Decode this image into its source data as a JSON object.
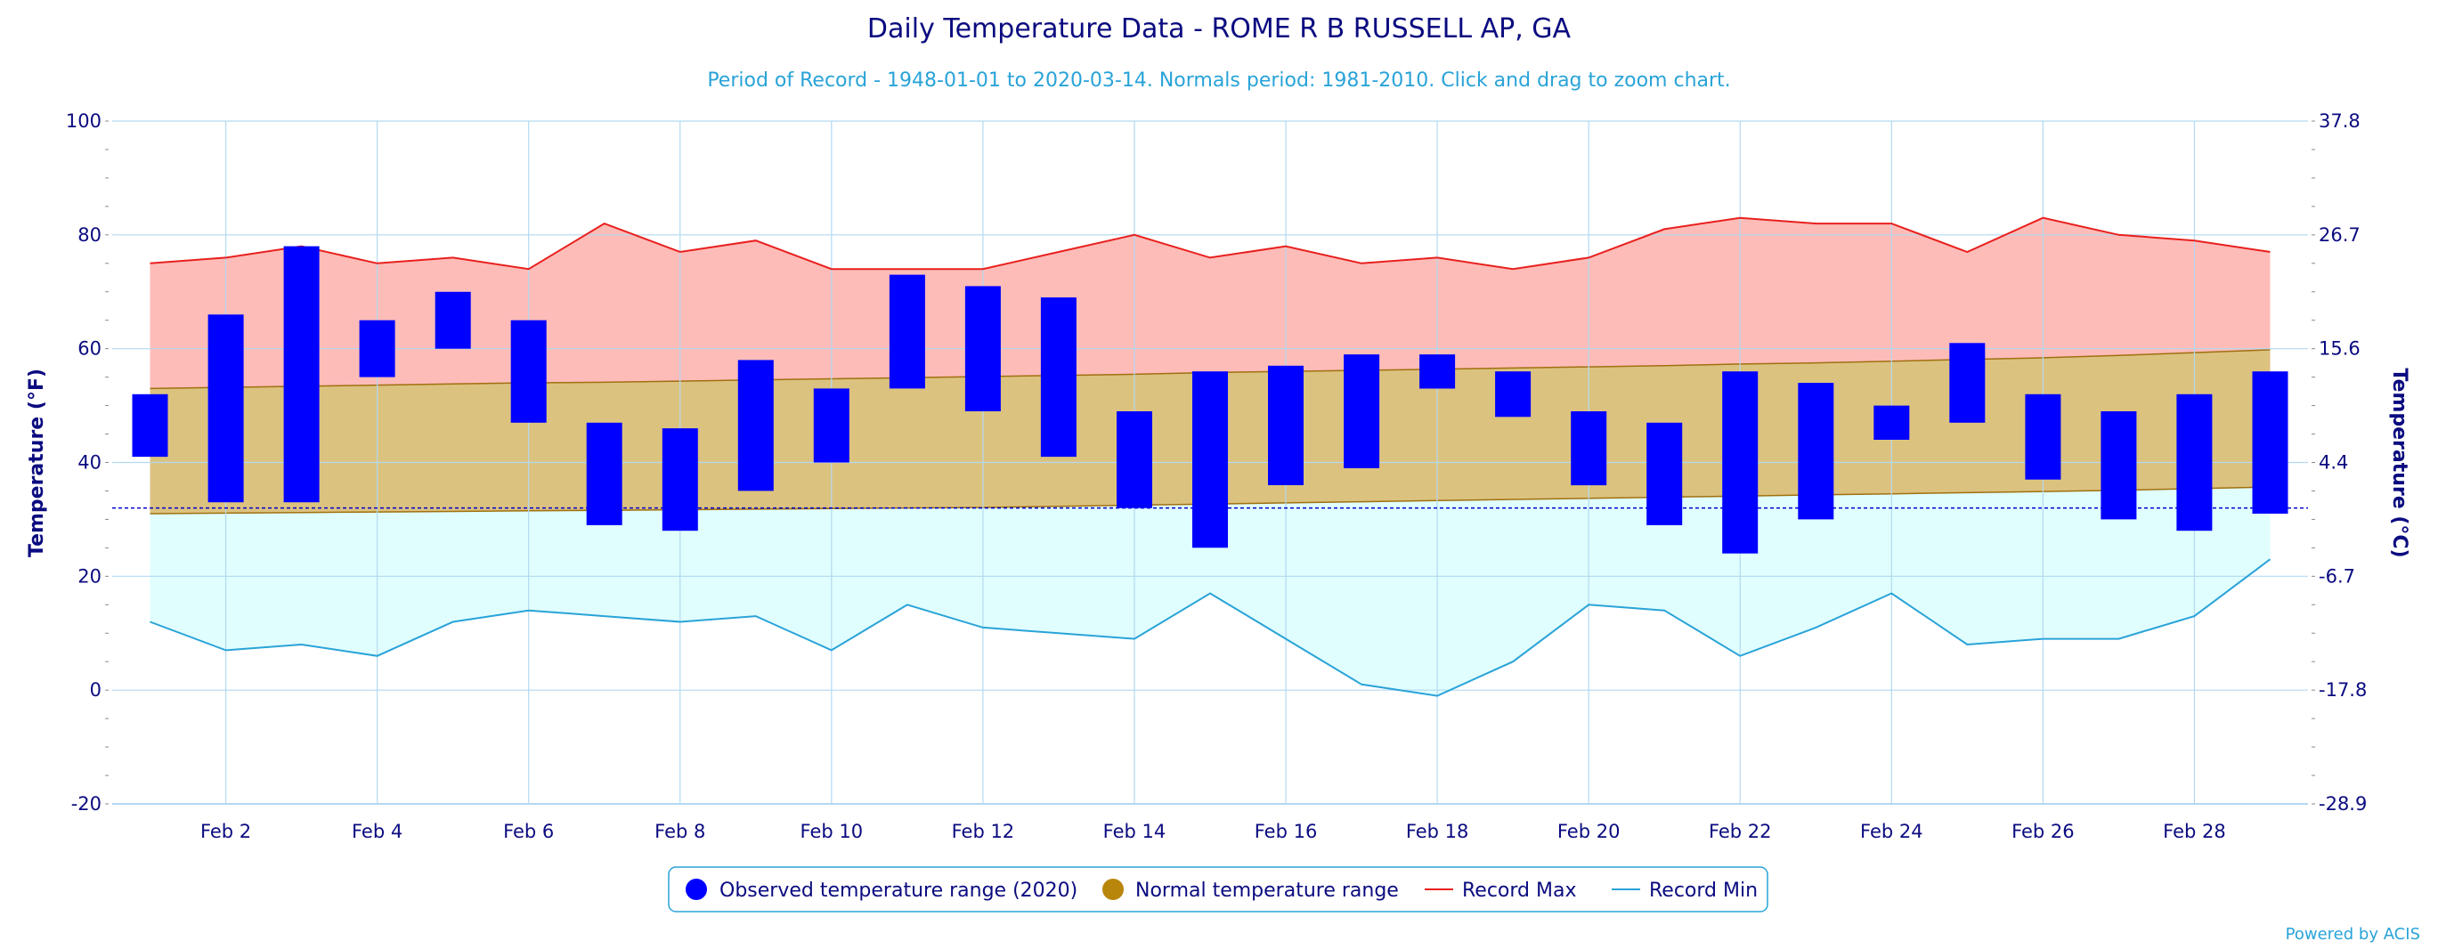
{
  "chart_data": {
    "type": "bar",
    "title": "Daily Temperature Data - ROME R B RUSSELL AP, GA",
    "subtitle": "Period of Record - 1948-01-01 to 2020-03-14. Normals period: 1981-2010. Click and drag to zoom chart.",
    "ylabel_left": "Temperature (°F)",
    "ylabel_right": "Temperature (°C)",
    "ylim": [
      -20,
      100
    ],
    "yticks_left": [
      "-20",
      "0",
      "20",
      "40",
      "60",
      "80",
      "100"
    ],
    "yticks_right": [
      "-28.9",
      "-17.8",
      "-6.7",
      "4.4",
      "15.6",
      "26.7",
      "37.8"
    ],
    "xlim": [
      0.5,
      29.5
    ],
    "xtick_days": [
      2,
      4,
      6,
      8,
      10,
      12,
      14,
      16,
      18,
      20,
      22,
      24,
      26,
      28
    ],
    "xtick_labels": [
      "Feb 2",
      "Feb 4",
      "Feb 6",
      "Feb 8",
      "Feb 10",
      "Feb 12",
      "Feb 14",
      "Feb 16",
      "Feb 18",
      "Feb 20",
      "Feb 22",
      "Feb 24",
      "Feb 26",
      "Feb 28"
    ],
    "freezing_line": 32,
    "days": [
      1,
      2,
      3,
      4,
      5,
      6,
      7,
      8,
      9,
      10,
      11,
      12,
      13,
      14,
      15,
      16,
      17,
      18,
      19,
      20,
      21,
      22,
      23,
      24,
      25,
      26,
      27,
      28,
      29
    ],
    "series": [
      {
        "name": "Observed temperature range (2020)",
        "color": "#0000ff",
        "high": [
          52,
          66,
          78,
          65,
          70,
          65,
          47,
          46,
          58,
          53,
          73,
          71,
          69,
          49,
          56,
          57,
          59,
          59,
          56,
          49,
          47,
          56,
          54,
          50,
          61,
          52,
          49,
          52,
          56
        ],
        "low": [
          41,
          33,
          33,
          55,
          60,
          47,
          29,
          28,
          35,
          40,
          53,
          49,
          41,
          32,
          25,
          36,
          39,
          53,
          48,
          36,
          29,
          24,
          30,
          44,
          47,
          37,
          30,
          28,
          31
        ]
      },
      {
        "name": "Normal temperature range",
        "color": "#b8860b",
        "high": [
          53.0,
          53.2,
          53.4,
          53.6,
          53.8,
          54.0,
          54.1,
          54.3,
          54.5,
          54.7,
          54.9,
          55.1,
          55.3,
          55.5,
          55.8,
          56.0,
          56.2,
          56.4,
          56.6,
          56.8,
          57.0,
          57.3,
          57.5,
          57.8,
          58.1,
          58.4,
          58.8,
          59.3,
          59.8
        ],
        "low": [
          31.0,
          31.1,
          31.2,
          31.3,
          31.4,
          31.5,
          31.6,
          31.7,
          31.8,
          31.9,
          32.0,
          32.1,
          32.3,
          32.5,
          32.7,
          32.9,
          33.1,
          33.3,
          33.5,
          33.7,
          33.9,
          34.1,
          34.3,
          34.5,
          34.7,
          34.9,
          35.1,
          35.4,
          35.7
        ]
      },
      {
        "name": "Record Max",
        "color": "#e8201e",
        "values": [
          75,
          76,
          78,
          75,
          76,
          74,
          82,
          77,
          79,
          74,
          74,
          74,
          77,
          80,
          76,
          78,
          75,
          76,
          74,
          76,
          81,
          83,
          82,
          82,
          77,
          83,
          80,
          79,
          77
        ]
      },
      {
        "name": "Record Min",
        "color": "#29a3d8",
        "values": [
          12,
          7,
          8,
          6,
          12,
          14,
          13,
          12,
          13,
          7,
          15,
          11,
          10,
          9,
          17,
          9,
          1,
          -1,
          5,
          15,
          14,
          6,
          11,
          17,
          8,
          9,
          9,
          13,
          23
        ]
      }
    ],
    "colors": {
      "record_band": "#fdbcb8",
      "normal_band": "#dcc27f",
      "below_band": "#e0fefe",
      "freezing_line": "#0000cc",
      "grid": "#b3d9f2"
    },
    "legend_position": "bottom-center",
    "grid": true,
    "credit": "Powered by ACIS"
  }
}
